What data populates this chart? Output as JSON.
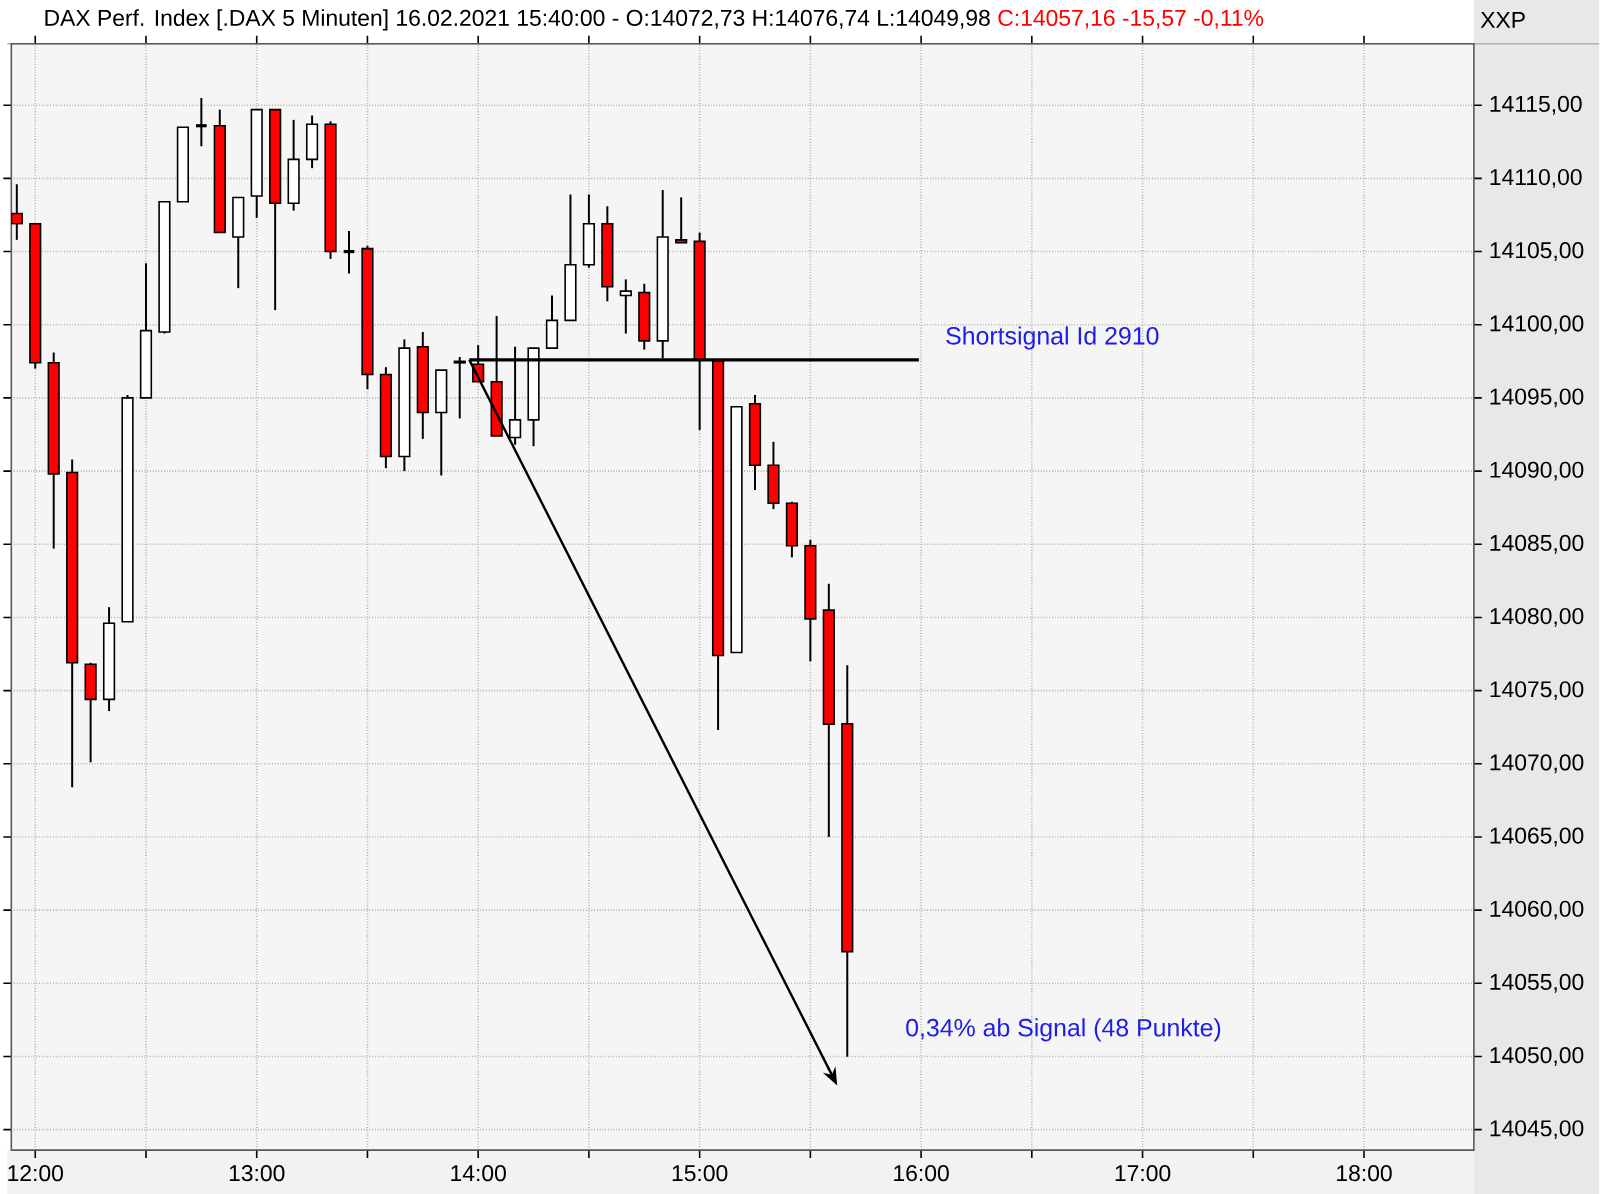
{
  "chart_data": {
    "type": "candlestick",
    "title": "DAX Perf. Index [.DAX  5 Minuten] 16.02.2021 15:40:00 - O:14072,73 H:14076,74 L:14049,98",
    "subtitle": "C:14057,16 -15,57 -0,11%",
    "x": [
      11.9167,
      12,
      12.0833,
      12.1667,
      12.25,
      12.3333,
      12.4167,
      12.5,
      12.5833,
      12.6667,
      12.75,
      12.8333,
      12.9167,
      13,
      13.0833,
      13.1667,
      13.25,
      13.3333,
      13.4167,
      13.5,
      13.5833,
      13.6667,
      13.75,
      13.8333,
      13.9167,
      14,
      14.0833,
      14.1667,
      14.25,
      14.3333,
      14.4167,
      14.5,
      14.5833,
      14.6667,
      14.75,
      14.8333,
      14.9167,
      15,
      15.0833,
      15.1667,
      15.25,
      15.3333,
      15.4167,
      15.5,
      15.5833,
      15.6667
    ],
    "ohlc": [
      [
        14107.6,
        14109.6,
        14105.8,
        14106.9
      ],
      [
        14106.9,
        14106.9,
        14097.0,
        14097.4
      ],
      [
        14097.4,
        14098.1,
        14084.7,
        14089.8
      ],
      [
        14089.9,
        14090.8,
        14068.4,
        14076.9
      ],
      [
        14076.8,
        14076.9,
        14070.1,
        14074.4
      ],
      [
        14074.4,
        14080.7,
        14073.6,
        14079.6
      ],
      [
        14079.7,
        14095.2,
        14079.7,
        14095.0
      ],
      [
        14095.0,
        14104.2,
        14095.0,
        14099.6
      ],
      [
        14099.5,
        14108.4,
        14099.4,
        14108.4
      ],
      [
        14108.4,
        14113.5,
        14108.4,
        14113.5
      ],
      [
        14113.6,
        14115.5,
        14112.2,
        14113.6
      ],
      [
        14113.6,
        14114.7,
        14106.3,
        14106.3
      ],
      [
        14106.0,
        14108.7,
        14102.5,
        14108.7
      ],
      [
        14108.8,
        14114.7,
        14107.3,
        14114.7
      ],
      [
        14114.7,
        14114.7,
        14101.0,
        14108.3
      ],
      [
        14108.3,
        14114.0,
        14107.8,
        14111.3
      ],
      [
        14111.3,
        14114.3,
        14110.7,
        14113.7
      ],
      [
        14113.7,
        14113.9,
        14104.5,
        14105.0
      ],
      [
        14105.0,
        14106.4,
        14103.5,
        14105.0
      ],
      [
        14105.2,
        14105.4,
        14095.6,
        14096.6
      ],
      [
        14096.6,
        14097.1,
        14090.2,
        14091.0
      ],
      [
        14091.0,
        14099.0,
        14090.0,
        14098.4
      ],
      [
        14098.5,
        14099.5,
        14092.2,
        14094.0
      ],
      [
        14094.0,
        14096.9,
        14089.7,
        14096.9
      ],
      [
        14097.4,
        14097.8,
        14093.6,
        14097.5
      ],
      [
        14097.3,
        14098.6,
        14096.1,
        14096.1
      ],
      [
        14096.1,
        14100.6,
        14092.4,
        14092.4
      ],
      [
        14092.3,
        14098.5,
        14091.8,
        14093.5
      ],
      [
        14093.5,
        14098.4,
        14091.7,
        14098.4
      ],
      [
        14098.4,
        14102.0,
        14098.4,
        14100.3
      ],
      [
        14100.3,
        14108.9,
        14100.3,
        14104.1
      ],
      [
        14104.1,
        14108.9,
        14103.9,
        14106.9
      ],
      [
        14106.9,
        14108.1,
        14101.6,
        14102.6
      ],
      [
        14102.0,
        14103.1,
        14099.4,
        14102.3
      ],
      [
        14102.2,
        14102.8,
        14098.3,
        14098.9
      ],
      [
        14098.9,
        14109.2,
        14097.7,
        14106.0
      ],
      [
        14105.8,
        14108.7,
        14105.6,
        14105.6
      ],
      [
        14105.7,
        14106.3,
        14092.8,
        14097.6
      ],
      [
        14097.5,
        14097.5,
        14072.3,
        14077.4
      ],
      [
        14077.6,
        14094.4,
        14077.6,
        14094.4
      ],
      [
        14094.6,
        14095.2,
        14088.7,
        14090.4
      ],
      [
        14090.4,
        14092.0,
        14087.4,
        14087.8
      ],
      [
        14087.8,
        14087.9,
        14084.1,
        14084.9
      ],
      [
        14084.9,
        14085.3,
        14077.0,
        14079.9
      ],
      [
        14080.5,
        14082.3,
        14065.0,
        14072.7
      ],
      [
        14072.73,
        14076.74,
        14049.98,
        14057.16
      ]
    ],
    "colors": [
      "#ff0000",
      "#ff0000",
      "#ff0000",
      "#ff0000",
      "#ff0000",
      "#ffffff",
      "#ffffff",
      "#ffffff",
      "#ffffff",
      "#ffffff",
      "#000000",
      "#ff0000",
      "#ffffff",
      "#ffffff",
      "#ff0000",
      "#ffffff",
      "#ffffff",
      "#ff0000",
      "#000000",
      "#ff0000",
      "#ff0000",
      "#ffffff",
      "#ff0000",
      "#ffffff",
      "#ffffff",
      "#ff0000",
      "#ff0000",
      "#ffffff",
      "#ffffff",
      "#ffffff",
      "#ffffff",
      "#ffffff",
      "#ff0000",
      "#ffffff",
      "#ff0000",
      "#ffffff",
      "#ff0000",
      "#ff0000",
      "#ff0000",
      "#ffffff",
      "#ff0000",
      "#ff0000",
      "#ff0000",
      "#ff0000",
      "#ff0000",
      "#ff0000"
    ],
    "series": [
      {
        "type": "line",
        "x": [
          13.96,
          15.99
        ],
        "values": [
          14097.6,
          14097.6
        ],
        "color": "#000000"
      },
      {
        "type": "line",
        "x": [
          13.96,
          15.585
        ],
        "values": [
          14097.6,
          14049.1
        ],
        "color": "#000000"
      }
    ],
    "annotations": [
      "Shortsignal Id 2910",
      "0,34% ab Signal (48 Punkte)",
      "XXP"
    ],
    "xlim": [
      11.892,
      18.496
    ],
    "ylim": [
      14043.6,
      14119.2
    ],
    "xticks": [
      {
        "value": 12,
        "label": "12:00"
      },
      {
        "value": 12.5,
        "label": null
      },
      {
        "value": 13,
        "label": "13:00"
      },
      {
        "value": 13.5,
        "label": null
      },
      {
        "value": 14,
        "label": "14:00"
      },
      {
        "value": 14.5,
        "label": null
      },
      {
        "value": 15,
        "label": "15:00"
      },
      {
        "value": 15.5,
        "label": null
      },
      {
        "value": 16,
        "label": "16:00"
      },
      {
        "value": 16.5,
        "label": null
      },
      {
        "value": 17,
        "label": "17:00"
      },
      {
        "value": 17.5,
        "label": null
      },
      {
        "value": 18,
        "label": "18:00"
      }
    ],
    "yticks": [
      {
        "value": 14045,
        "label": "14045,00"
      },
      {
        "value": 14050,
        "label": "14050,00"
      },
      {
        "value": 14055,
        "label": "14055,00"
      },
      {
        "value": 14060,
        "label": "14060,00"
      },
      {
        "value": 14065,
        "label": "14065,00"
      },
      {
        "value": 14070,
        "label": "14070,00"
      },
      {
        "value": 14075,
        "label": "14075,00"
      },
      {
        "value": 14080,
        "label": "14080,00"
      },
      {
        "value": 14085,
        "label": "14085,00"
      },
      {
        "value": 14090,
        "label": "14090,00"
      },
      {
        "value": 14095,
        "label": "14095,00"
      },
      {
        "value": 14100,
        "label": "14100,00"
      },
      {
        "value": 14105,
        "label": "14105,00"
      },
      {
        "value": 14110,
        "label": "14110,00"
      },
      {
        "value": 14115,
        "label": "14115,00"
      }
    ],
    "grid": true
  }
}
